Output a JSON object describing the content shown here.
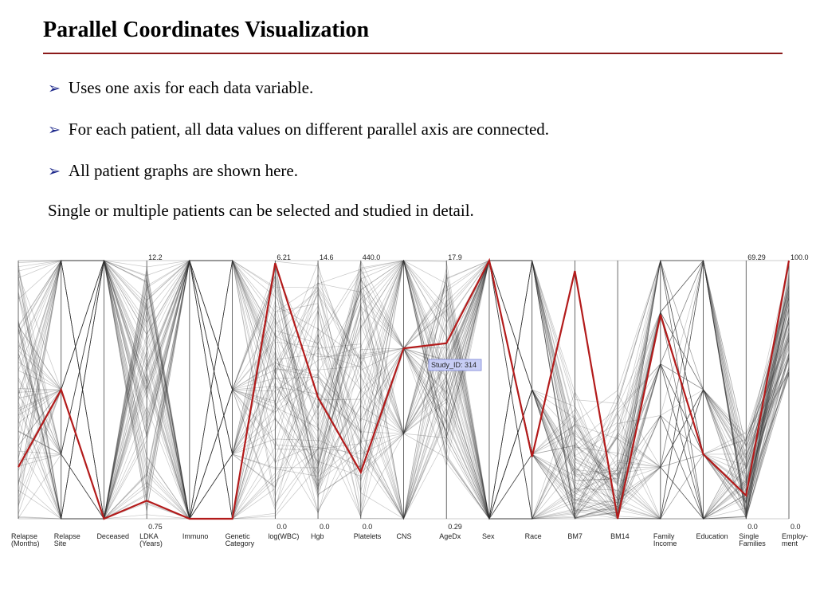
{
  "slide": {
    "title": "Parallel Coordinates Visualization",
    "bullet_icon": "arrow-bullet-icon",
    "bullets": [
      "Uses one axis for each data variable.",
      "For each patient, all data values on different parallel axis are connected.",
      "All patient graphs are shown here."
    ],
    "plain_text": "Single or multiple patients can be selected and studied in detail."
  },
  "colors": {
    "title_rule": "#8b1a1a",
    "bullet": "#1f2a8c",
    "highlight": "#b31b1b",
    "lines": "#333333"
  },
  "chart_data": {
    "type": "parallel-coordinates",
    "axes": [
      {
        "label": [
          "Relapse",
          "(Months)"
        ],
        "max": "",
        "min": ""
      },
      {
        "label": [
          "Relapse",
          "Site"
        ],
        "max": "",
        "min": ""
      },
      {
        "label": [
          "Deceased"
        ],
        "max": "",
        "min": ""
      },
      {
        "label": [
          "LDKA",
          "(Years)"
        ],
        "max": "12.2",
        "min": "0.75"
      },
      {
        "label": [
          "Immuno"
        ],
        "max": "",
        "min": ""
      },
      {
        "label": [
          "Genetic",
          "Category"
        ],
        "max": "",
        "min": ""
      },
      {
        "label": [
          "log(WBC)"
        ],
        "max": "6.21",
        "min": "0.0"
      },
      {
        "label": [
          "Hgb"
        ],
        "max": "14.6",
        "min": "0.0"
      },
      {
        "label": [
          "Platelets"
        ],
        "max": "440.0",
        "min": "0.0"
      },
      {
        "label": [
          "CNS"
        ],
        "max": "",
        "min": ""
      },
      {
        "label": [
          "AgeDx"
        ],
        "max": "17.9",
        "min": "0.29"
      },
      {
        "label": [
          "Sex"
        ],
        "max": "",
        "min": ""
      },
      {
        "label": [
          "Race"
        ],
        "max": "",
        "min": ""
      },
      {
        "label": [
          "BM7"
        ],
        "max": "",
        "min": ""
      },
      {
        "label": [
          "BM14"
        ],
        "max": "",
        "min": ""
      },
      {
        "label": [
          "Family",
          "Income"
        ],
        "max": "",
        "min": ""
      },
      {
        "label": [
          "Education"
        ],
        "max": "",
        "min": ""
      },
      {
        "label": [
          "Single",
          "Families"
        ],
        "max": "69.29",
        "min": "0.0"
      },
      {
        "label": [
          "Employ-",
          "ment"
        ],
        "max": "100.0",
        "min": "0.0"
      }
    ],
    "highlighted": {
      "label": "Study_ID: 314",
      "values": [
        0.2,
        0.5,
        0.0,
        0.07,
        0.0,
        0.0,
        0.99,
        0.47,
        0.18,
        0.66,
        0.68,
        1.0,
        0.24,
        0.96,
        0.0,
        0.79,
        0.25,
        0.09,
        1.0
      ]
    },
    "background_patient_count": 90
  }
}
